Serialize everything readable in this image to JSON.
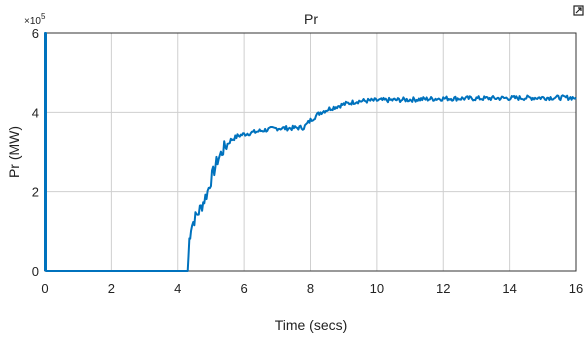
{
  "chart_data": {
    "type": "line",
    "title": "Pr",
    "xlabel": "Time (secs)",
    "ylabel": "Pr (MW)",
    "y_multiplier_label": "×10",
    "y_multiplier_exponent": "5",
    "xlim": [
      0,
      16
    ],
    "ylim": [
      0,
      6
    ],
    "x_ticks": [
      "0",
      "2",
      "4",
      "6",
      "8",
      "10",
      "12",
      "14",
      "16"
    ],
    "y_ticks": [
      "0",
      "2",
      "4",
      "6"
    ],
    "grid": true,
    "series": [
      {
        "color": "#0072BD",
        "x": [
          0,
          0,
          0.03,
          0.03,
          4.3,
          4.35,
          4.4,
          4.5,
          4.7,
          4.9,
          5.0,
          5.2,
          5.4,
          5.6,
          5.8,
          6.0,
          6.3,
          6.6,
          7.0,
          7.4,
          7.8,
          8.0,
          8.3,
          8.6,
          9.0,
          9.4,
          10.0,
          11.0,
          12.0,
          13.0,
          14.0,
          15.0,
          16.0
        ],
        "y": [
          0,
          6.0,
          6.0,
          0,
          0,
          0.8,
          1.1,
          1.3,
          1.6,
          2.0,
          2.3,
          2.8,
          3.1,
          3.3,
          3.4,
          3.45,
          3.5,
          3.55,
          3.6,
          3.6,
          3.62,
          3.8,
          4.0,
          4.1,
          4.2,
          4.28,
          4.3,
          4.32,
          4.35,
          4.35,
          4.36,
          4.37,
          4.37
        ]
      }
    ]
  }
}
